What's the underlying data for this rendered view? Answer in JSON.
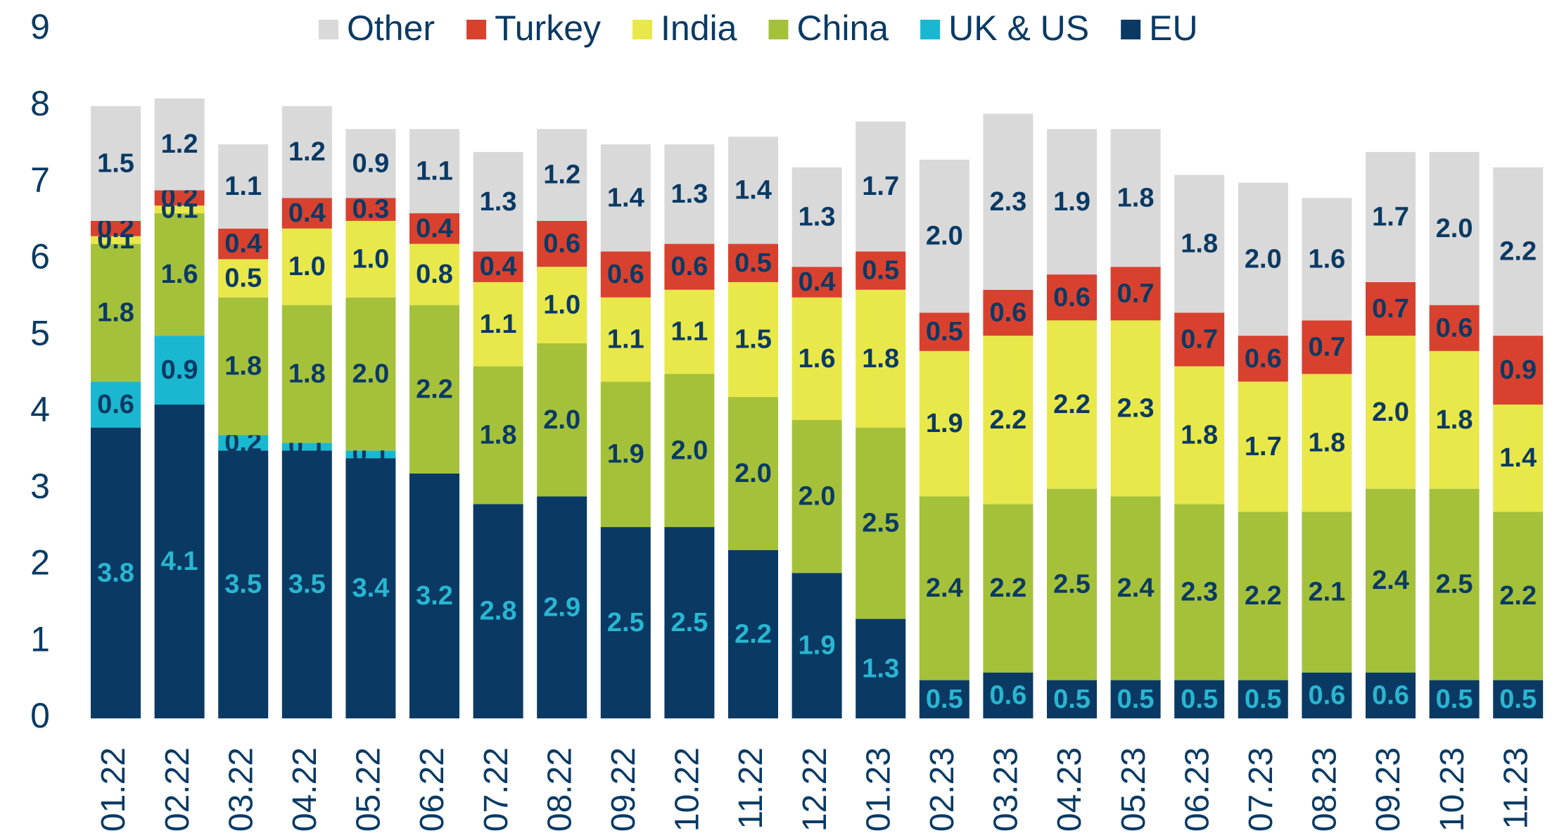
{
  "chart_data": {
    "type": "stacked_bar",
    "categories": [
      "01.22",
      "02.22",
      "03.22",
      "04.22",
      "05.22",
      "06.22",
      "07.22",
      "08.22",
      "09.22",
      "10.22",
      "11.22",
      "12.22",
      "01.23",
      "02.23",
      "03.23",
      "04.23",
      "05.23",
      "06.23",
      "07.23",
      "08.23",
      "09.23",
      "10.23",
      "11.23"
    ],
    "series": [
      {
        "name": "EU",
        "color": "#0a3a64",
        "label_color": "#29b6d1",
        "values": [
          3.8,
          4.1,
          3.5,
          3.5,
          3.4,
          3.2,
          2.8,
          2.9,
          2.5,
          2.5,
          2.2,
          1.9,
          1.3,
          0.5,
          0.6,
          0.5,
          0.5,
          0.5,
          0.5,
          0.6,
          0.6,
          0.5,
          0.5
        ],
        "value_labels": [
          "3.8",
          "4.1",
          "3.5",
          "3.5",
          "3.4",
          "3.2",
          "2.8",
          "2.9",
          "2.5",
          "2.5",
          "2.2",
          "1.9",
          "1.3",
          "0.5",
          "0.6",
          "0.5",
          "0.5",
          "0.5",
          "0.5",
          "0.6",
          "0.6",
          "0.5",
          "0.5"
        ]
      },
      {
        "name": "UK & US",
        "color": "#1ab8d0",
        "label_color": "#0a3a64",
        "values": [
          0.6,
          0.9,
          0.2,
          0.1,
          0.1,
          null,
          null,
          null,
          null,
          null,
          null,
          null,
          null,
          null,
          null,
          null,
          null,
          null,
          null,
          null,
          null,
          null,
          null
        ],
        "value_labels": [
          "0.6",
          "0.9",
          "0.2",
          "0.1",
          "0.1",
          null,
          null,
          null,
          null,
          null,
          null,
          null,
          null,
          null,
          null,
          null,
          null,
          null,
          null,
          null,
          null,
          null,
          null
        ]
      },
      {
        "name": "China",
        "color": "#a5c13a",
        "label_color": "#0a3a64",
        "values": [
          1.8,
          1.6,
          1.8,
          1.8,
          2.0,
          2.2,
          1.8,
          2.0,
          1.9,
          2.0,
          2.0,
          2.0,
          2.5,
          2.4,
          2.2,
          2.5,
          2.4,
          2.3,
          2.2,
          2.1,
          2.4,
          2.5,
          2.2
        ],
        "value_labels": [
          "1.8",
          "1.6",
          "1.8",
          "1.8",
          "2.0",
          "2.2",
          "1.8",
          "2.0",
          "1.9",
          "2.0",
          "2.0",
          "2.0",
          "2.5",
          "2.4",
          "2.2",
          "2.5",
          "2.4",
          "2.3",
          "2.2",
          "2.1",
          "2.4",
          "2.5",
          "2.2"
        ]
      },
      {
        "name": "India",
        "color": "#e8e84a",
        "label_color": "#0a3a64",
        "values": [
          0.1,
          0.1,
          0.5,
          1.0,
          1.0,
          0.8,
          1.1,
          1.0,
          1.1,
          1.1,
          1.5,
          1.6,
          1.8,
          1.9,
          2.2,
          2.2,
          2.3,
          1.8,
          1.7,
          1.8,
          2.0,
          1.8,
          1.4
        ],
        "value_labels": [
          "0.1",
          "0.1",
          "0.5",
          "1.0",
          "1.0",
          "0.8",
          "1.1",
          "1.0",
          "1.1",
          "1.1",
          "1.5",
          "1.6",
          "1.8",
          "1.9",
          "2.2",
          "2.2",
          "2.3",
          "1.8",
          "1.7",
          "1.8",
          "2.0",
          "1.8",
          "1.4"
        ]
      },
      {
        "name": "Turkey",
        "color": "#d9412f",
        "label_color": "#0a3a64",
        "values": [
          0.2,
          0.2,
          0.4,
          0.4,
          0.3,
          0.4,
          0.4,
          0.6,
          0.6,
          0.6,
          0.5,
          0.4,
          0.5,
          0.5,
          0.6,
          0.6,
          0.7,
          0.7,
          0.6,
          0.7,
          0.7,
          0.6,
          0.9
        ],
        "value_labels": [
          "0.2",
          "0.2",
          "0.4",
          "0.4",
          "0.3",
          "0.4",
          "0.4",
          "0.6",
          "0.6",
          "0.6",
          "0.5",
          "0.4",
          "0.5",
          "0.5",
          "0.6",
          "0.6",
          "0.7",
          "0.7",
          "0.6",
          "0.7",
          "0.7",
          "0.6",
          "0.9"
        ]
      },
      {
        "name": "Other",
        "color": "#d9d9d9",
        "label_color": "#0a3a64",
        "values": [
          1.5,
          1.2,
          1.1,
          1.2,
          0.9,
          1.1,
          1.3,
          1.2,
          1.4,
          1.3,
          1.4,
          1.3,
          1.7,
          2.0,
          2.3,
          1.9,
          1.8,
          1.8,
          2.0,
          1.6,
          1.7,
          2.0,
          2.2
        ],
        "value_labels": [
          "1.5",
          "1.2",
          "1.1",
          "1.2",
          "0.9",
          "1.1",
          "1.3",
          "1.2",
          "1.4",
          "1.3",
          "1.4",
          "1.3",
          "1.7",
          "2.0",
          "2.3",
          "1.9",
          "1.8",
          "1.8",
          "2.0",
          "1.6",
          "1.7",
          "2.0",
          "2.2"
        ]
      }
    ],
    "ylim": [
      0,
      9
    ],
    "yticks": [
      0,
      1,
      2,
      3,
      4,
      5,
      6,
      7,
      8,
      9
    ],
    "grid": false,
    "legend": "top"
  }
}
